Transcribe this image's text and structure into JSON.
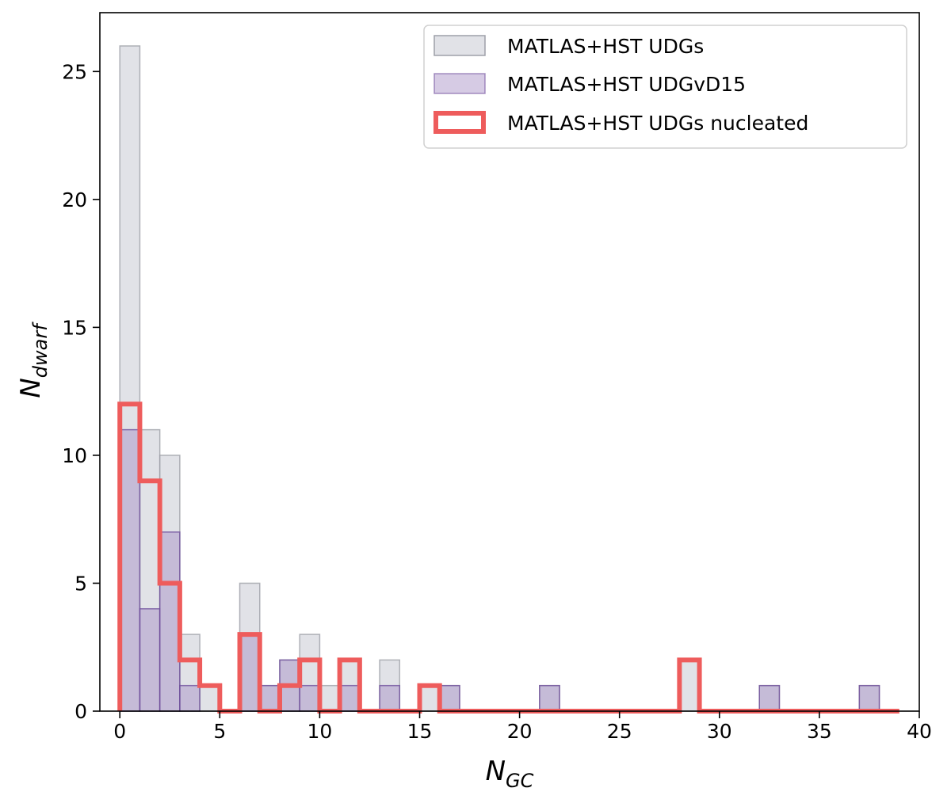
{
  "chart_data": {
    "type": "histogram",
    "title": "",
    "xlabel": {
      "main": "N",
      "sub": "GC"
    },
    "ylabel": {
      "main": "N",
      "sub": "dwarf"
    },
    "xlim": [
      -1,
      40
    ],
    "ylim": [
      0,
      27.3
    ],
    "xticks": [
      0,
      5,
      10,
      15,
      20,
      25,
      30,
      35,
      40
    ],
    "yticks": [
      0,
      5,
      10,
      15,
      20,
      25
    ],
    "grid": false,
    "legend_position": "top-right",
    "bin_width": 1,
    "series": [
      {
        "name": "MATLAS+HST UDGs",
        "style": "filled",
        "color": "#c9cbd4",
        "edge_color": "#9ea0a8",
        "bins": [
          {
            "x": 0,
            "count": 26
          },
          {
            "x": 1,
            "count": 11
          },
          {
            "x": 2,
            "count": 10
          },
          {
            "x": 3,
            "count": 3
          },
          {
            "x": 4,
            "count": 1
          },
          {
            "x": 6,
            "count": 5
          },
          {
            "x": 7,
            "count": 1
          },
          {
            "x": 8,
            "count": 2
          },
          {
            "x": 9,
            "count": 3
          },
          {
            "x": 10,
            "count": 1
          },
          {
            "x": 11,
            "count": 2
          },
          {
            "x": 13,
            "count": 2
          },
          {
            "x": 15,
            "count": 1
          },
          {
            "x": 16,
            "count": 1
          },
          {
            "x": 21,
            "count": 1
          },
          {
            "x": 28,
            "count": 2
          },
          {
            "x": 32,
            "count": 1
          },
          {
            "x": 37,
            "count": 1
          }
        ]
      },
      {
        "name": "MATLAS+HST UDGvD15",
        "style": "filled",
        "color": "#a48bc3",
        "edge_color": "#6f4f9c",
        "bins": [
          {
            "x": 0,
            "count": 11
          },
          {
            "x": 1,
            "count": 4
          },
          {
            "x": 2,
            "count": 7
          },
          {
            "x": 3,
            "count": 1
          },
          {
            "x": 6,
            "count": 3
          },
          {
            "x": 7,
            "count": 1
          },
          {
            "x": 8,
            "count": 2
          },
          {
            "x": 9,
            "count": 1
          },
          {
            "x": 11,
            "count": 1
          },
          {
            "x": 13,
            "count": 1
          },
          {
            "x": 16,
            "count": 1
          },
          {
            "x": 21,
            "count": 1
          },
          {
            "x": 32,
            "count": 1
          },
          {
            "x": 37,
            "count": 1
          }
        ]
      },
      {
        "name": "MATLAS+HST UDGs nucleated",
        "style": "step",
        "color": "#ee5c5c",
        "bins": [
          {
            "x": 0,
            "count": 12
          },
          {
            "x": 1,
            "count": 9
          },
          {
            "x": 2,
            "count": 5
          },
          {
            "x": 3,
            "count": 2
          },
          {
            "x": 4,
            "count": 1
          },
          {
            "x": 5,
            "count": 0
          },
          {
            "x": 6,
            "count": 3
          },
          {
            "x": 7,
            "count": 0
          },
          {
            "x": 8,
            "count": 1
          },
          {
            "x": 9,
            "count": 2
          },
          {
            "x": 10,
            "count": 0
          },
          {
            "x": 11,
            "count": 2
          },
          {
            "x": 12,
            "count": 0
          },
          {
            "x": 13,
            "count": 0
          },
          {
            "x": 14,
            "count": 0
          },
          {
            "x": 15,
            "count": 1
          },
          {
            "x": 16,
            "count": 0
          },
          {
            "x": 17,
            "count": 0
          },
          {
            "x": 18,
            "count": 0
          },
          {
            "x": 19,
            "count": 0
          },
          {
            "x": 20,
            "count": 0
          },
          {
            "x": 21,
            "count": 0
          },
          {
            "x": 22,
            "count": 0
          },
          {
            "x": 23,
            "count": 0
          },
          {
            "x": 24,
            "count": 0
          },
          {
            "x": 25,
            "count": 0
          },
          {
            "x": 26,
            "count": 0
          },
          {
            "x": 27,
            "count": 0
          },
          {
            "x": 28,
            "count": 2
          },
          {
            "x": 29,
            "count": 0
          },
          {
            "x": 30,
            "count": 0
          },
          {
            "x": 31,
            "count": 0
          },
          {
            "x": 32,
            "count": 0
          },
          {
            "x": 33,
            "count": 0
          },
          {
            "x": 34,
            "count": 0
          },
          {
            "x": 35,
            "count": 0
          },
          {
            "x": 36,
            "count": 0
          },
          {
            "x": 37,
            "count": 0
          },
          {
            "x": 38,
            "count": 0
          }
        ]
      }
    ]
  }
}
